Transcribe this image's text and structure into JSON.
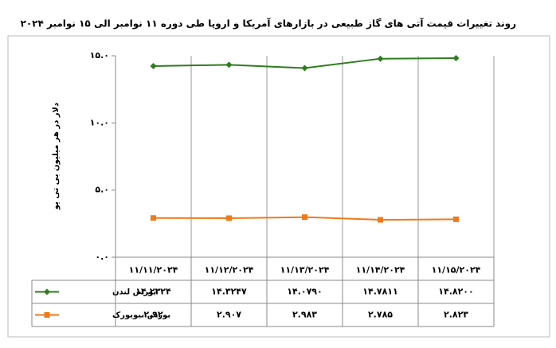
{
  "chart_data": {
    "type": "line",
    "title": "روند تغییرات قیمت آتی های گاز طبیعی در بازارهای آمریکا و اروپا طی دوره ۱۱ نوامبر الی ۱۵ نوامبر ۲۰۲۴",
    "y_label": "دلار در هر میلیون بی تی یو",
    "categories": [
      "۱۱/۱۱/۲۰۲۴",
      "۱۱/۱۲/۲۰۲۴",
      "۱۱/۱۳/۲۰۲۴",
      "۱۱/۱۴/۲۰۲۴",
      "۱۱/۱۵/۲۰۲۴"
    ],
    "series": [
      {
        "name": "بورس لندن",
        "color": "#2e7d1e",
        "marker": "diamond",
        "values": [
          14.2324,
          14.3247,
          14.079,
          14.7811,
          14.82
        ],
        "value_labels": [
          "۱۴.۲۳۲۴",
          "۱۴.۳۲۴۷",
          "۱۴.۰۷۹۰",
          "۱۴.۷۸۱۱",
          "۱۴.۸۲۰۰"
        ]
      },
      {
        "name": "بورس نیویورک",
        "color": "#f07a1a",
        "marker": "square",
        "values": [
          2.92,
          2.907,
          2.983,
          2.785,
          2.823
        ],
        "value_labels": [
          "۲.۹۲",
          "۲.۹۰۷",
          "۲.۹۸۳",
          "۲.۷۸۵",
          "۲.۸۲۳"
        ]
      }
    ],
    "ylim": [
      0,
      15
    ],
    "yticks": [
      {
        "value": 0,
        "label": "۰.۰"
      },
      {
        "value": 5,
        "label": "۵.۰"
      },
      {
        "value": 10,
        "label": "۱۰.۰"
      },
      {
        "value": 15,
        "label": "۱۵.۰"
      }
    ]
  }
}
